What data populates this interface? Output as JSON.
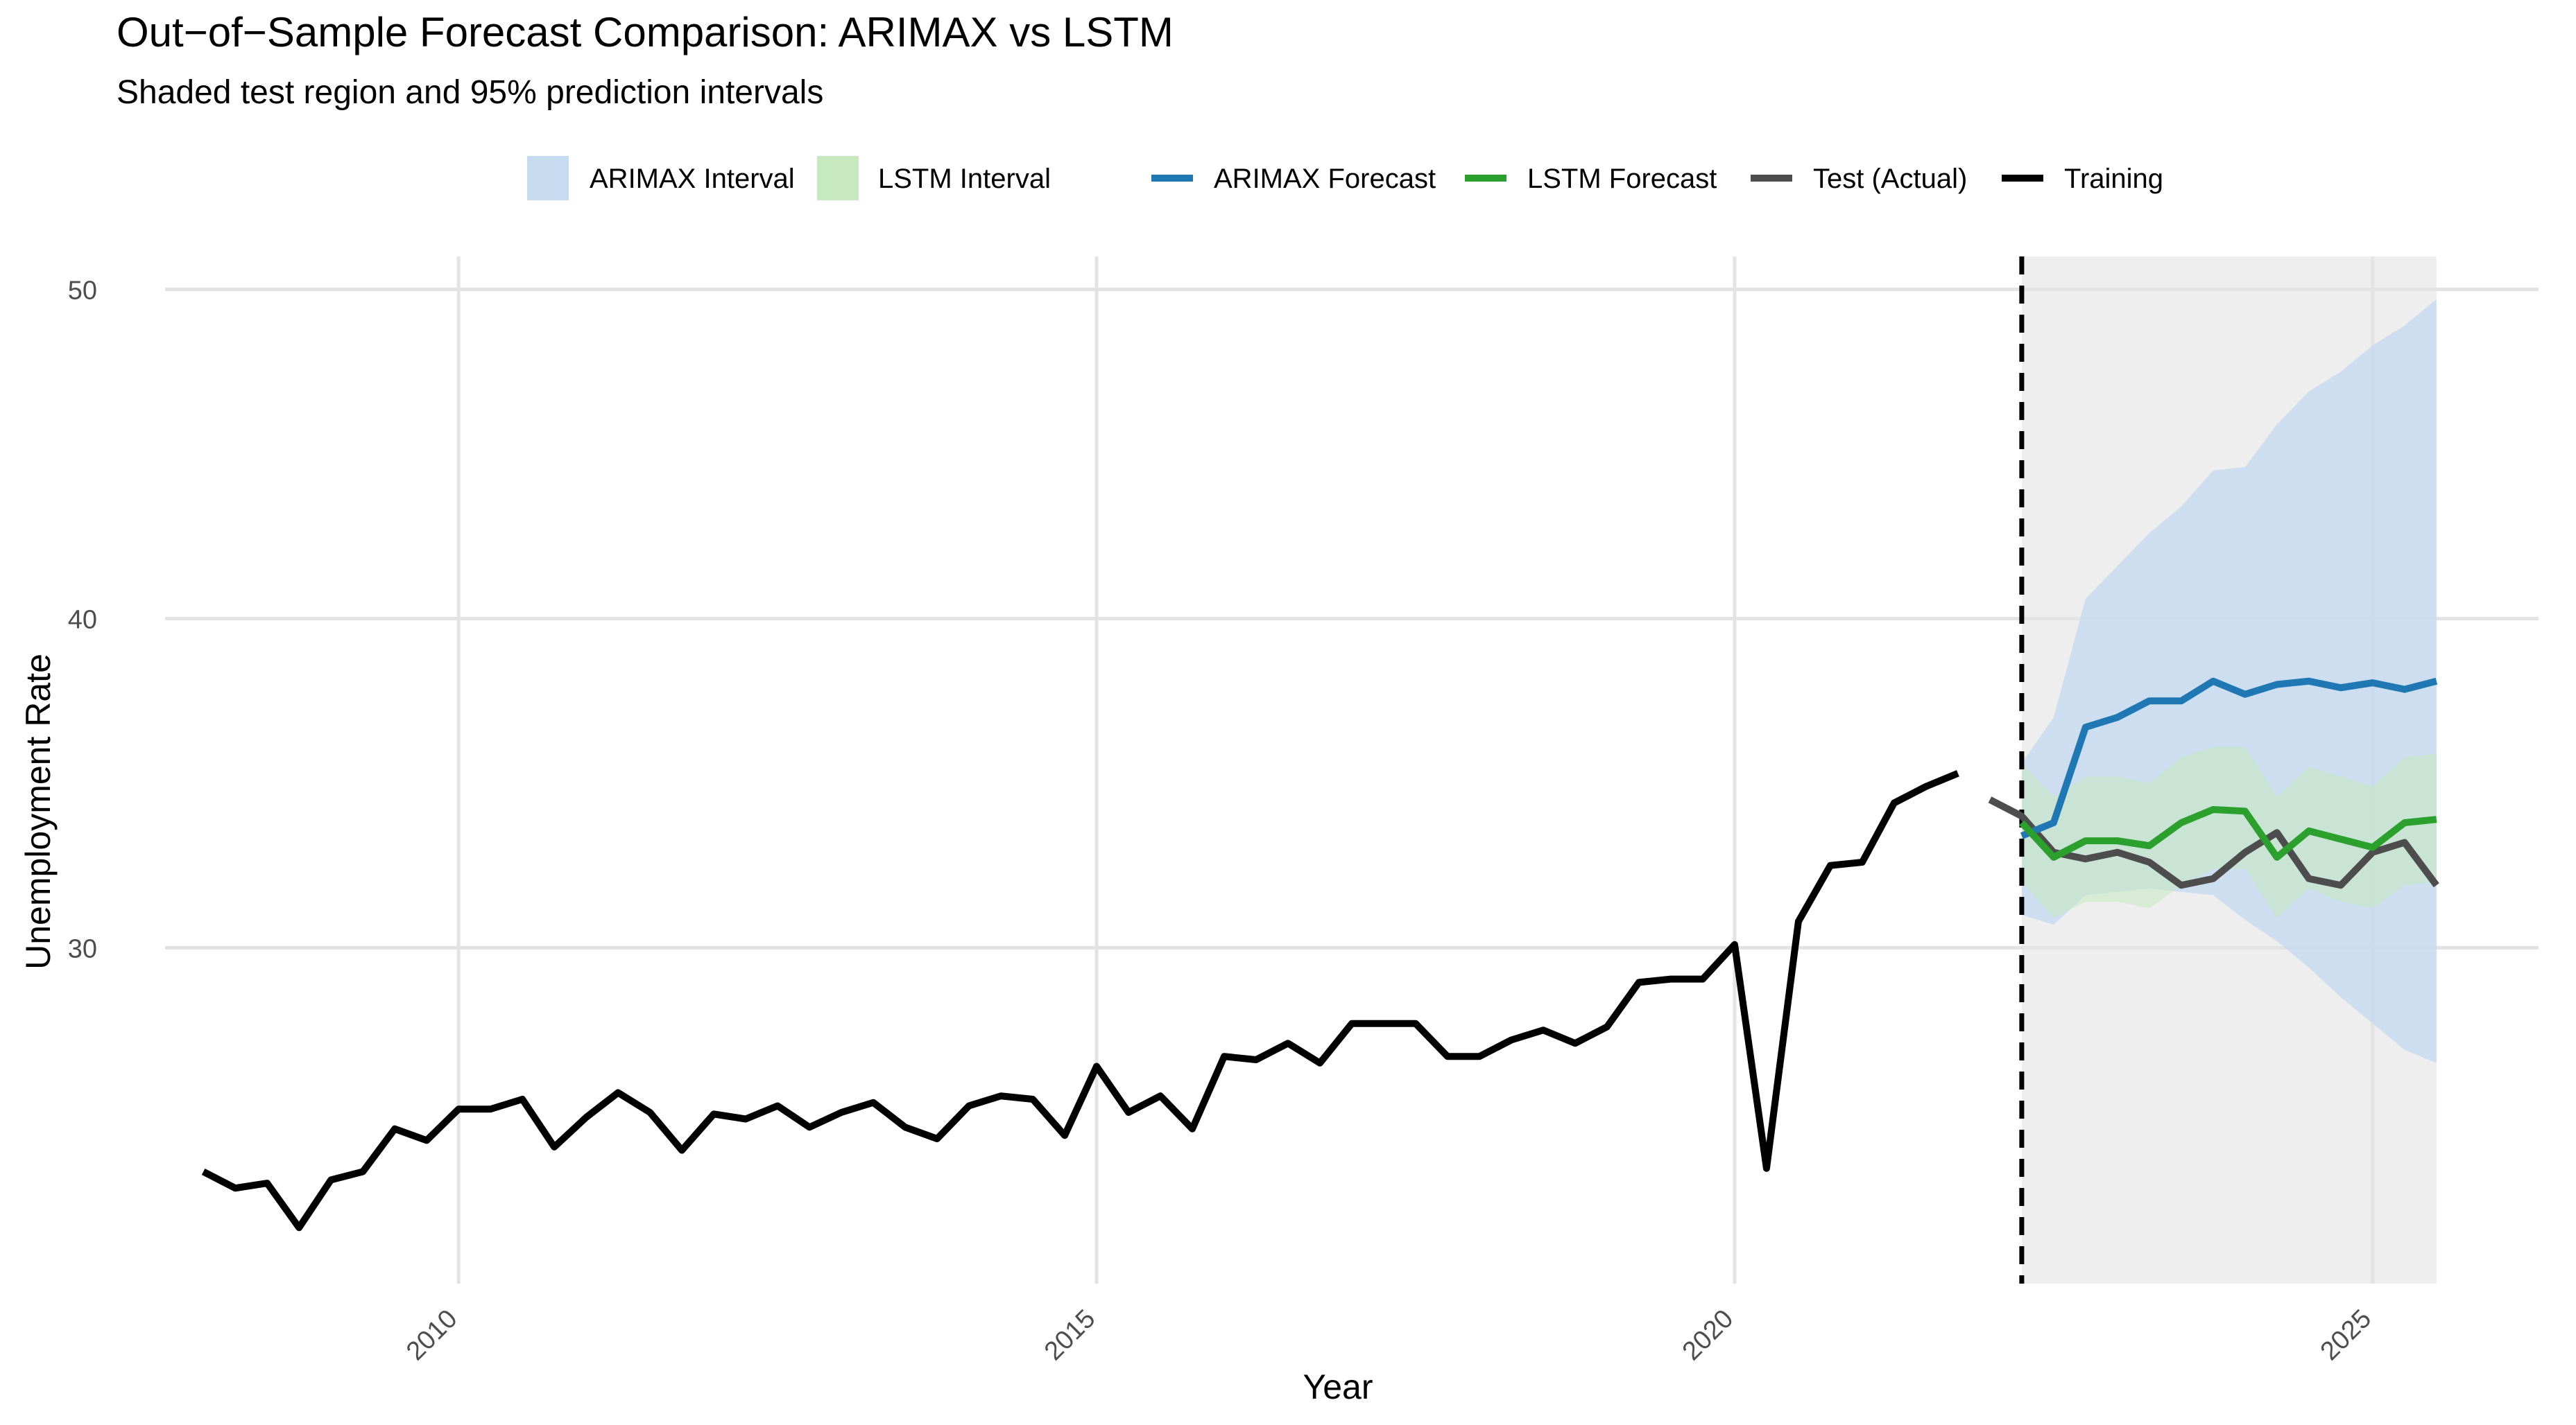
{
  "chart_data": {
    "type": "line",
    "title": "Out−of−Sample Forecast Comparison: ARIMAX vs LSTM",
    "subtitle": "Shaded test region and 95% prediction intervals",
    "xlabel": "Year",
    "ylabel": "Unemployment Rate",
    "xlim": [
      2007.7,
      2026.3
    ],
    "ylim": [
      19.8,
      51.0
    ],
    "x_ticks": [
      2010,
      2015,
      2020,
      2025
    ],
    "x_tick_labels": [
      "2010",
      "2015",
      "2020",
      "2025"
    ],
    "y_ticks": [
      30,
      40,
      50
    ],
    "y_tick_labels": [
      "30",
      "40",
      "50"
    ],
    "grid": true,
    "legend_position": "top",
    "test_region": [
      2022.25,
      2025.5
    ],
    "split_line_x": 2022.25,
    "legend": [
      {
        "label": "ARIMAX Interval",
        "kind": "fill",
        "color": "#c6dbef"
      },
      {
        "label": "LSTM Interval",
        "kind": "fill",
        "color": "#c7e9c0"
      },
      {
        "label": "ARIMAX Forecast",
        "kind": "line",
        "color": "#1f78b4"
      },
      {
        "label": "LSTM Forecast",
        "kind": "line",
        "color": "#2ca02c"
      },
      {
        "label": "Test (Actual)",
        "kind": "line",
        "color": "#4d4d4d"
      },
      {
        "label": "Training",
        "kind": "line",
        "color": "#000000"
      }
    ],
    "series": [
      {
        "name": "Training",
        "color": "#000000",
        "x": [
          2008.0,
          2008.25,
          2008.5,
          2008.75,
          2009.0,
          2009.25,
          2009.5,
          2009.75,
          2010.0,
          2010.25,
          2010.5,
          2010.75,
          2011.0,
          2011.25,
          2011.5,
          2011.75,
          2012.0,
          2012.25,
          2012.5,
          2012.75,
          2013.0,
          2013.25,
          2013.5,
          2013.75,
          2014.0,
          2014.25,
          2014.5,
          2014.75,
          2015.0,
          2015.25,
          2015.5,
          2015.75,
          2016.0,
          2016.25,
          2016.5,
          2016.75,
          2017.0,
          2017.25,
          2017.5,
          2017.75,
          2018.0,
          2018.25,
          2018.5,
          2018.75,
          2019.0,
          2019.25,
          2019.5,
          2019.75,
          2020.0,
          2020.25,
          2020.5,
          2020.75,
          2021.0,
          2021.25,
          2021.5,
          2021.75
        ],
        "values": [
          23.2,
          22.7,
          22.85,
          21.5,
          22.95,
          23.2,
          24.5,
          24.15,
          25.1,
          25.1,
          25.4,
          23.95,
          24.85,
          25.6,
          25.0,
          23.85,
          24.95,
          24.8,
          25.2,
          24.55,
          25.0,
          25.3,
          24.55,
          24.2,
          25.2,
          25.5,
          25.4,
          24.3,
          26.4,
          25.0,
          25.5,
          24.5,
          26.7,
          26.6,
          27.1,
          26.5,
          27.7,
          27.7,
          27.7,
          26.7,
          26.7,
          27.2,
          27.5,
          27.1,
          27.6,
          28.95,
          29.05,
          29.05,
          30.1,
          23.3,
          30.8,
          32.5,
          32.6,
          34.4,
          34.9,
          35.3
        ]
      },
      {
        "name": "Test (Actual)",
        "color": "#4d4d4d",
        "x": [
          2022.0,
          2022.25,
          2022.5,
          2022.75,
          2023.0,
          2023.25,
          2023.5,
          2023.75,
          2024.0,
          2024.25,
          2024.5,
          2024.75,
          2025.0,
          2025.25,
          2025.5
        ],
        "values": [
          34.5,
          34.0,
          32.9,
          32.7,
          32.9,
          32.6,
          31.9,
          32.1,
          32.9,
          33.5,
          32.1,
          31.9,
          32.9,
          33.2,
          31.9
        ]
      },
      {
        "name": "ARIMAX Forecast",
        "color": "#1f78b4",
        "x": [
          2022.25,
          2022.5,
          2022.75,
          2023.0,
          2023.25,
          2023.5,
          2023.75,
          2024.0,
          2024.25,
          2024.5,
          2024.75,
          2025.0,
          2025.25,
          2025.5
        ],
        "values": [
          33.4,
          33.8,
          36.7,
          37.0,
          37.5,
          37.5,
          38.1,
          37.7,
          38.0,
          38.1,
          37.9,
          38.05,
          37.85,
          38.1
        ]
      },
      {
        "name": "LSTM Forecast",
        "color": "#2ca02c",
        "x": [
          2022.25,
          2022.5,
          2022.75,
          2023.0,
          2023.25,
          2023.5,
          2023.75,
          2024.0,
          2024.25,
          2024.5,
          2024.75,
          2025.0,
          2025.25,
          2025.5
        ],
        "values": [
          33.8,
          32.75,
          33.25,
          33.25,
          33.1,
          33.8,
          34.2,
          34.15,
          32.75,
          33.55,
          33.3,
          33.05,
          33.8,
          33.9
        ]
      }
    ],
    "bands": [
      {
        "name": "ARIMAX Interval",
        "color": "#c6dbef",
        "x": [
          2022.25,
          2022.5,
          2022.75,
          2023.0,
          2023.25,
          2023.5,
          2023.75,
          2024.0,
          2024.25,
          2024.5,
          2024.75,
          2025.0,
          2025.25,
          2025.5
        ],
        "lower": [
          31.0,
          30.7,
          31.6,
          31.7,
          31.8,
          31.7,
          31.6,
          30.85,
          30.2,
          29.4,
          28.5,
          27.7,
          26.9,
          26.5
        ],
        "upper": [
          35.6,
          37.0,
          40.6,
          41.6,
          42.6,
          43.4,
          44.5,
          44.6,
          45.9,
          46.9,
          47.5,
          48.3,
          48.9,
          49.7
        ]
      },
      {
        "name": "LSTM Interval",
        "color": "#c7e9c0",
        "x": [
          2022.25,
          2022.5,
          2022.75,
          2023.0,
          2023.25,
          2023.5,
          2023.75,
          2024.0,
          2024.25,
          2024.5,
          2024.75,
          2025.0,
          2025.25,
          2025.5
        ],
        "lower": [
          32.0,
          30.9,
          31.4,
          31.4,
          31.2,
          31.9,
          32.4,
          32.4,
          30.9,
          31.8,
          31.4,
          31.2,
          31.9,
          32.0
        ],
        "upper": [
          35.6,
          34.6,
          35.2,
          35.2,
          35.0,
          35.8,
          36.1,
          36.1,
          34.6,
          35.5,
          35.2,
          34.9,
          35.8,
          35.9
        ]
      }
    ]
  }
}
